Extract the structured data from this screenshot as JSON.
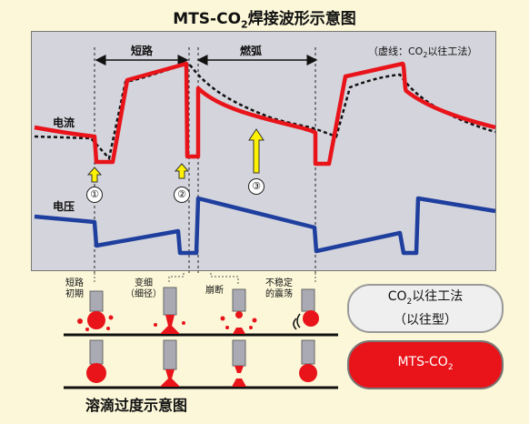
{
  "title": {
    "main": "MTS-CO",
    "sub": "2",
    "tail": "焊接波形示意图"
  },
  "segments": {
    "short_circuit": "短路",
    "arc": "燃弧"
  },
  "dash_note": {
    "pre": "（虚线：CO",
    "sub": "2",
    "post": "以往工法）"
  },
  "labels": {
    "current": "电流",
    "voltage": "电压"
  },
  "markers": [
    "①",
    "②",
    "③"
  ],
  "droplet_labels": {
    "initial": [
      "短路",
      "初期"
    ],
    "neck": [
      "变细",
      "（细径）"
    ],
    "break": [
      "崩断"
    ],
    "unstable": [
      "不稳定",
      "的震荡"
    ]
  },
  "legend": {
    "old": {
      "line1_pre": "CO",
      "line1_sub": "2",
      "line1_post": "以往工法",
      "line2": "（以往型）"
    },
    "new": {
      "pre": "MTS-CO",
      "sub": "2"
    }
  },
  "footer_title": "溶滴过度示意图",
  "colors": {
    "background": "#fbf7d8",
    "panel": "#d4d4dc",
    "current_wave": "#e8141a",
    "voltage_wave": "#1f3f9e",
    "arrow_fill": "#fff200",
    "droplet": "#e8141a"
  },
  "icons": {
    "marker_arrow": "up-arrow-icon",
    "electrode": "electrode-rod-icon"
  }
}
